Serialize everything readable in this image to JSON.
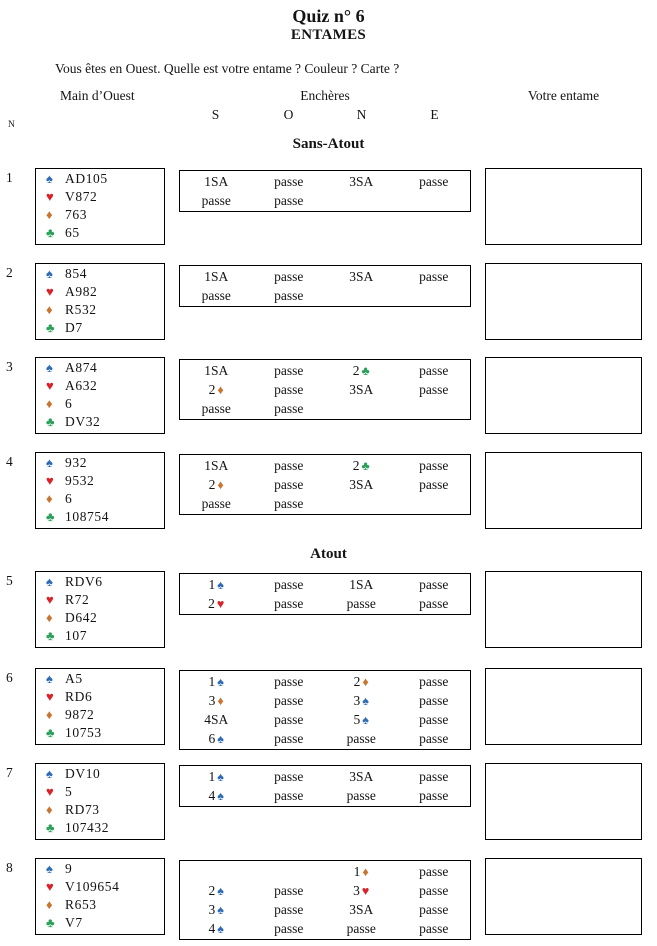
{
  "page": {
    "title": "Quiz n° 6",
    "subtitle": "ENTAMES",
    "instruction": "Vous êtes en Ouest. Quelle est votre entame ? Couleur ? Carte ?",
    "col_hand": "Main d’Ouest",
    "col_bids": "Enchères",
    "col_lead": "Votre entame",
    "num_col": "N",
    "seats": [
      "S",
      "O",
      "N",
      "E"
    ]
  },
  "icons": {
    "spade": "♠",
    "heart": "♥",
    "diamond": "♦",
    "club": "♣"
  },
  "colors": {
    "spade": "#2e6db6",
    "heart": "#da2127",
    "diamond": "#c9752f",
    "club": "#2aa05a",
    "text": "#141414",
    "border": "#000000"
  },
  "sections": [
    {
      "label": "Sans-Atout",
      "rows": [
        0,
        1,
        2,
        3
      ]
    },
    {
      "label": "Atout",
      "rows": [
        4,
        5,
        6,
        7
      ]
    }
  ],
  "rows": [
    {
      "num": "1",
      "hand": [
        {
          "suit": "spade",
          "cards": "AD105"
        },
        {
          "suit": "heart",
          "cards": "V872"
        },
        {
          "suit": "diamond",
          "cards": "763"
        },
        {
          "suit": "club",
          "cards": "65"
        }
      ],
      "bids": [
        [
          {
            "t": "1SA"
          },
          {
            "t": "passe"
          },
          {
            "t": "3SA"
          },
          {
            "t": "passe"
          }
        ],
        [
          {
            "t": "passe"
          },
          {
            "t": "passe"
          },
          {
            "t": ""
          },
          {
            "t": ""
          }
        ]
      ]
    },
    {
      "num": "2",
      "hand": [
        {
          "suit": "spade",
          "cards": "854"
        },
        {
          "suit": "heart",
          "cards": "A982"
        },
        {
          "suit": "diamond",
          "cards": "R532"
        },
        {
          "suit": "club",
          "cards": "D7"
        }
      ],
      "bids": [
        [
          {
            "t": "1SA"
          },
          {
            "t": "passe"
          },
          {
            "t": "3SA"
          },
          {
            "t": "passe"
          }
        ],
        [
          {
            "t": "passe"
          },
          {
            "t": "passe"
          },
          {
            "t": ""
          },
          {
            "t": ""
          }
        ]
      ]
    },
    {
      "num": "3",
      "hand": [
        {
          "suit": "spade",
          "cards": "A874"
        },
        {
          "suit": "heart",
          "cards": "A632"
        },
        {
          "suit": "diamond",
          "cards": "6"
        },
        {
          "suit": "club",
          "cards": "DV32"
        }
      ],
      "bids": [
        [
          {
            "t": "1SA"
          },
          {
            "t": "passe"
          },
          {
            "t": "2",
            "s": "club"
          },
          {
            "t": "passe"
          }
        ],
        [
          {
            "t": "2",
            "s": "diamond"
          },
          {
            "t": "passe"
          },
          {
            "t": "3SA"
          },
          {
            "t": "passe"
          }
        ],
        [
          {
            "t": "passe"
          },
          {
            "t": "passe"
          },
          {
            "t": ""
          },
          {
            "t": ""
          }
        ]
      ]
    },
    {
      "num": "4",
      "hand": [
        {
          "suit": "spade",
          "cards": "932"
        },
        {
          "suit": "heart",
          "cards": "9532"
        },
        {
          "suit": "diamond",
          "cards": "6"
        },
        {
          "suit": "club",
          "cards": "108754"
        }
      ],
      "bids": [
        [
          {
            "t": "1SA"
          },
          {
            "t": "passe"
          },
          {
            "t": "2",
            "s": "club"
          },
          {
            "t": "passe"
          }
        ],
        [
          {
            "t": "2",
            "s": "diamond"
          },
          {
            "t": "passe"
          },
          {
            "t": "3SA"
          },
          {
            "t": "passe"
          }
        ],
        [
          {
            "t": "passe"
          },
          {
            "t": "passe"
          },
          {
            "t": ""
          },
          {
            "t": ""
          }
        ]
      ]
    },
    {
      "num": "5",
      "hand": [
        {
          "suit": "spade",
          "cards": "RDV6"
        },
        {
          "suit": "heart",
          "cards": "R72"
        },
        {
          "suit": "diamond",
          "cards": "D642"
        },
        {
          "suit": "club",
          "cards": "107"
        }
      ],
      "bids": [
        [
          {
            "t": "1",
            "s": "spade"
          },
          {
            "t": "passe"
          },
          {
            "t": "1SA"
          },
          {
            "t": "passe"
          }
        ],
        [
          {
            "t": "2",
            "s": "heart"
          },
          {
            "t": "passe"
          },
          {
            "t": "passe"
          },
          {
            "t": "passe"
          }
        ]
      ]
    },
    {
      "num": "6",
      "hand": [
        {
          "suit": "spade",
          "cards": "A5"
        },
        {
          "suit": "heart",
          "cards": "RD6"
        },
        {
          "suit": "diamond",
          "cards": "9872"
        },
        {
          "suit": "club",
          "cards": "10753"
        }
      ],
      "bids": [
        [
          {
            "t": "1",
            "s": "spade"
          },
          {
            "t": "passe"
          },
          {
            "t": "2",
            "s": "diamond"
          },
          {
            "t": "passe"
          }
        ],
        [
          {
            "t": "3",
            "s": "diamond"
          },
          {
            "t": "passe"
          },
          {
            "t": "3",
            "s": "spade"
          },
          {
            "t": "passe"
          }
        ],
        [
          {
            "t": "4SA"
          },
          {
            "t": "passe"
          },
          {
            "t": "5",
            "s": "spade"
          },
          {
            "t": "passe"
          }
        ],
        [
          {
            "t": "6",
            "s": "spade"
          },
          {
            "t": "passe"
          },
          {
            "t": "passe"
          },
          {
            "t": "passe"
          }
        ]
      ]
    },
    {
      "num": "7",
      "hand": [
        {
          "suit": "spade",
          "cards": "DV10"
        },
        {
          "suit": "heart",
          "cards": "5"
        },
        {
          "suit": "diamond",
          "cards": "RD73"
        },
        {
          "suit": "club",
          "cards": "107432"
        }
      ],
      "bids": [
        [
          {
            "t": "1",
            "s": "spade"
          },
          {
            "t": "passe"
          },
          {
            "t": "3SA"
          },
          {
            "t": "passe"
          }
        ],
        [
          {
            "t": "4",
            "s": "spade"
          },
          {
            "t": "passe"
          },
          {
            "t": "passe"
          },
          {
            "t": "passe"
          }
        ]
      ]
    },
    {
      "num": "8",
      "hand": [
        {
          "suit": "spade",
          "cards": "9"
        },
        {
          "suit": "heart",
          "cards": "V109654"
        },
        {
          "suit": "diamond",
          "cards": "R653"
        },
        {
          "suit": "club",
          "cards": "V7"
        }
      ],
      "bids": [
        [
          {
            "t": ""
          },
          {
            "t": ""
          },
          {
            "t": "1",
            "s": "diamond"
          },
          {
            "t": "passe"
          }
        ],
        [
          {
            "t": "2",
            "s": "spade"
          },
          {
            "t": "passe"
          },
          {
            "t": "3",
            "s": "heart"
          },
          {
            "t": "passe"
          }
        ],
        [
          {
            "t": "3",
            "s": "spade"
          },
          {
            "t": "passe"
          },
          {
            "t": "3SA"
          },
          {
            "t": "passe"
          }
        ],
        [
          {
            "t": "4",
            "s": "spade"
          },
          {
            "t": "passe"
          },
          {
            "t": "passe"
          },
          {
            "t": "passe"
          }
        ]
      ]
    }
  ]
}
